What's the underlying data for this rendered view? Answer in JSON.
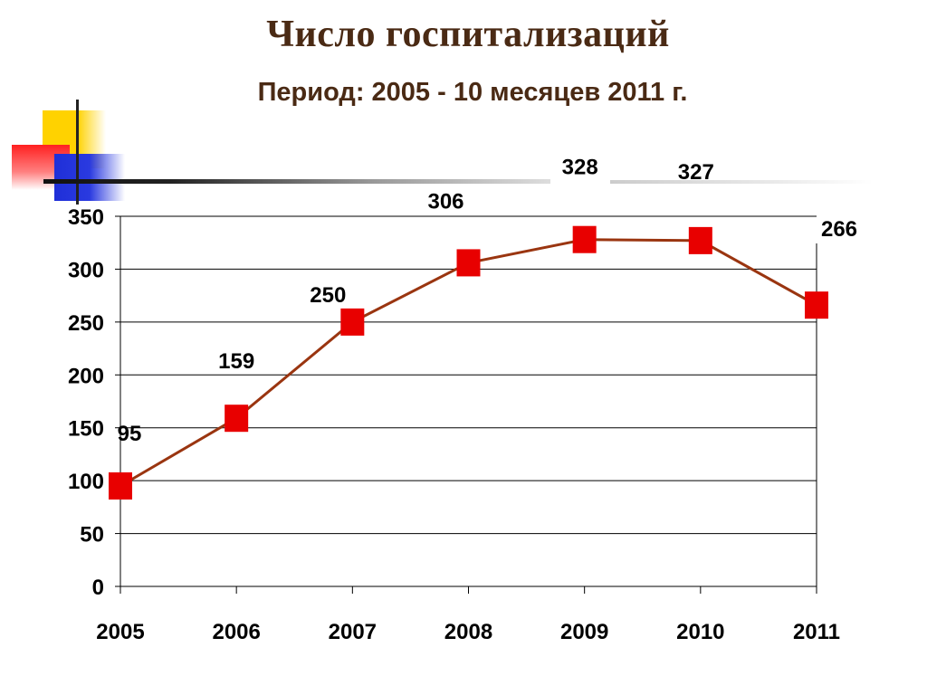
{
  "page": {
    "title": "Число госпитализаций",
    "subtitle": "Период: 2005 - 10 месяцев 2011 г."
  },
  "colors": {
    "line": "#9a3510",
    "marker": "#e80000",
    "grid": "#000000"
  },
  "chart_data": {
    "type": "line",
    "title": "Число госпитализаций",
    "subtitle": "Период: 2005 - 10 месяцев 2011 г.",
    "xlabel": "",
    "ylabel": "",
    "categories": [
      "2005",
      "2006",
      "2007",
      "2008",
      "2009",
      "2010",
      "2011"
    ],
    "series": [
      {
        "values": [
          95,
          159,
          250,
          306,
          328,
          327,
          266
        ],
        "marker": "square"
      }
    ],
    "data_labels": [
      "95",
      "159",
      "250",
      "306",
      "328",
      "327",
      "266"
    ],
    "ylim": [
      0,
      350
    ],
    "yticks": [
      0,
      50,
      100,
      150,
      200,
      250,
      300,
      350
    ],
    "ytick_labels": [
      "0",
      "50",
      "100",
      "150",
      "200",
      "250",
      "300",
      "350"
    ],
    "grid": true,
    "legend": "none"
  }
}
